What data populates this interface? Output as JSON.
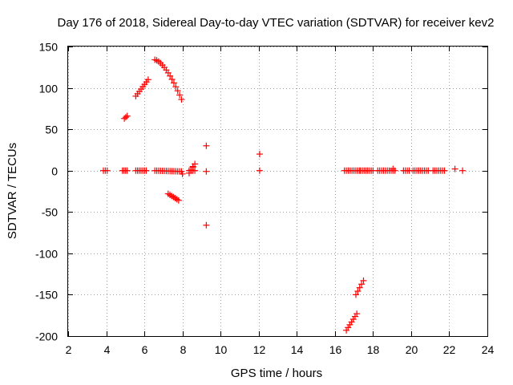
{
  "chart_data": {
    "type": "scatter",
    "title": "Day 176 of 2018, Sidereal Day-to-day VTEC variation (SDTVAR) for receiver kev2",
    "xlabel": "GPS time / hours",
    "ylabel": "SDTVAR / TECUs",
    "xlim": [
      2,
      24
    ],
    "ylim": [
      -200,
      150
    ],
    "xticks": [
      "2",
      "4",
      "6",
      "8",
      "10",
      "12",
      "14",
      "16",
      "18",
      "20",
      "22",
      "24"
    ],
    "yticks": [
      "150",
      "100",
      "50",
      "0",
      "-50",
      "-100",
      "-150",
      "-200"
    ],
    "grid": true,
    "marker": "plus",
    "series": [
      {
        "name": "SDTVAR",
        "color": "#ff0000",
        "segments": [
          {
            "x": [
              3.85,
              4.05
            ],
            "y": [
              0,
              0
            ]
          },
          {
            "x": [
              4.85,
              5.1
            ],
            "y": [
              0,
              0
            ]
          },
          {
            "x": [
              4.95,
              5.1
            ],
            "y": [
              63,
              66
            ]
          },
          {
            "x": [
              5.55,
              6.1
            ],
            "y": [
              0,
              0
            ]
          },
          {
            "x": [
              5.55,
              6.2
            ],
            "y": [
              90,
              110
            ]
          },
          {
            "x": [
              6.55,
              7.95
            ],
            "y": [
              0,
              -1
            ]
          },
          {
            "x": [
              6.55,
              7.95
            ],
            "y": [
              134,
              86
            ]
          },
          {
            "x": [
              7.25,
              7.8
            ],
            "y": [
              -28,
              -36
            ]
          },
          {
            "x": [
              8.35,
              8.65
            ],
            "y": [
              0,
              0
            ]
          },
          {
            "x": [
              8.35,
              8.65
            ],
            "y": [
              -3,
              8
            ]
          },
          {
            "x": [
              16.6,
              17.15
            ],
            "y": [
              -193,
              -173
            ]
          },
          {
            "x": [
              17.1,
              17.5
            ],
            "y": [
              -150,
              -133
            ]
          },
          {
            "x": [
              16.5,
              17.3
            ],
            "y": [
              0,
              0
            ]
          },
          {
            "x": [
              17.35,
              18.0
            ],
            "y": [
              0,
              0
            ]
          },
          {
            "x": [
              18.25,
              19.15
            ],
            "y": [
              0,
              0
            ]
          },
          {
            "x": [
              19.6,
              19.9
            ],
            "y": [
              0,
              0
            ]
          },
          {
            "x": [
              20.1,
              20.9
            ],
            "y": [
              0,
              0
            ]
          },
          {
            "x": [
              21.15,
              21.75
            ],
            "y": [
              0,
              0
            ]
          }
        ],
        "points": [
          {
            "x": 8.0,
            "y": -4
          },
          {
            "x": 8.55,
            "y": 5
          },
          {
            "x": 9.25,
            "y": 30
          },
          {
            "x": 9.25,
            "y": -1
          },
          {
            "x": 9.25,
            "y": -66
          },
          {
            "x": 12.05,
            "y": 20
          },
          {
            "x": 12.05,
            "y": 0
          },
          {
            "x": 19.05,
            "y": 2
          },
          {
            "x": 22.3,
            "y": 2
          },
          {
            "x": 22.7,
            "y": 0
          }
        ]
      }
    ]
  }
}
